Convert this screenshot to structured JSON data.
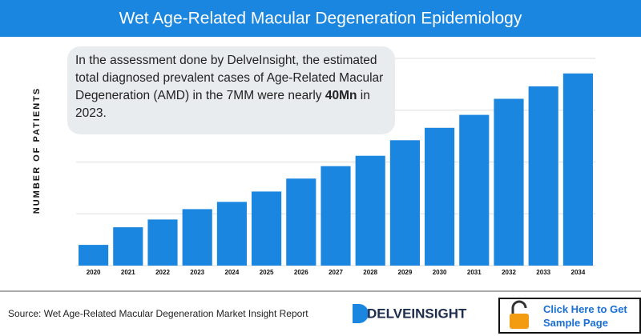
{
  "chart_data": {
    "type": "bar",
    "title": "Wet Age-Related Macular Degeneration Epidemiology",
    "y_label": "NUMBER OF PATIENTS",
    "annotation": {
      "before": "In the assessment done by DelveInsight, the estimated total diagnosed prevalent cases of Age-Related Macular Degeneration (AMD) in the 7MM were nearly ",
      "emphasis": "40Mn",
      "after": " in 2023."
    },
    "categories": [
      "2020",
      "2021",
      "2022",
      "2023",
      "2024",
      "2025",
      "2026",
      "2027",
      "2028",
      "2029",
      "2030",
      "2031",
      "2032",
      "2033",
      "2034"
    ],
    "values": [
      0.4,
      0.74,
      0.89,
      1.09,
      1.23,
      1.43,
      1.68,
      1.92,
      2.12,
      2.42,
      2.66,
      2.91,
      3.22,
      3.46,
      3.71
    ],
    "color": "#1a86e0",
    "ylim": [
      0,
      4
    ],
    "gridlines": [
      0,
      1,
      2,
      3,
      4
    ]
  },
  "footer": {
    "source": "Source: Wet Age-Related Macular Degeneration Market Insight Report",
    "logo": "DELVEINSIGHT",
    "button": [
      "Click Here to Get",
      "Sample Page"
    ]
  }
}
